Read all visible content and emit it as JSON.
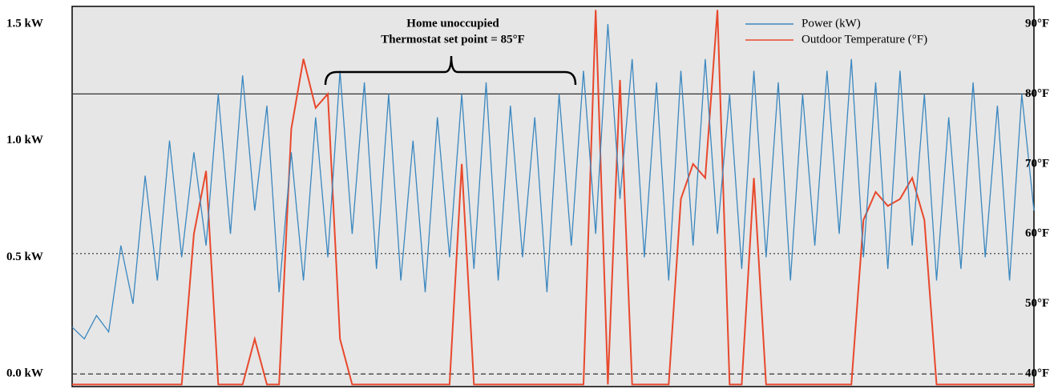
{
  "chart_data": {
    "type": "line",
    "annotation": [
      "Home unoccupied",
      "Thermostat set point = 85°F"
    ],
    "ylim": [
      -0.055,
      1.576
    ],
    "yticks": [
      {
        "value": 0,
        "label": "0.0 kW"
      },
      {
        "value": 0.5,
        "label": "0.5 kW"
      },
      {
        "value": 1.0,
        "label": "1.0 kW"
      },
      {
        "value": 1.5,
        "label": "1.5 kW"
      }
    ],
    "y2lim": [
      38.2,
      92.5
    ],
    "y2ticks": [
      {
        "value": 40,
        "label": "40°F"
      },
      {
        "value": 50,
        "label": "50°F"
      },
      {
        "value": 60,
        "label": "60°F"
      },
      {
        "value": 70,
        "label": "70°F"
      },
      {
        "value": 80,
        "label": "80°F"
      },
      {
        "value": 90,
        "label": "90°F"
      }
    ],
    "reference_lines": [
      {
        "value": 80,
        "axis": "y2",
        "style": "solid"
      },
      {
        "value": 57.2,
        "axis": "y2",
        "style": "dotted"
      },
      {
        "value": 40,
        "axis": "y2",
        "style": "dashed"
      }
    ],
    "legend": "top-right",
    "series": [
      {
        "name": "Power (kW)",
        "color": "#3a87bf",
        "values": [
          0.2,
          0.15,
          0.25,
          0.18,
          0.55,
          0.3,
          0.85,
          0.4,
          1.0,
          0.5,
          0.95,
          0.55,
          1.2,
          0.6,
          1.28,
          0.7,
          1.15,
          0.35,
          0.95,
          0.4,
          1.1,
          0.5,
          1.3,
          0.6,
          1.25,
          0.45,
          1.2,
          0.4,
          1.0,
          0.35,
          1.1,
          0.5,
          1.2,
          0.45,
          1.25,
          0.4,
          1.15,
          0.5,
          1.1,
          0.35,
          1.2,
          0.55,
          1.3,
          0.6,
          1.5,
          0.75,
          1.35,
          0.5,
          1.25,
          0.4,
          1.3,
          0.55,
          1.35,
          0.6,
          1.2,
          0.45,
          1.3,
          0.5,
          1.25,
          0.4,
          1.2,
          0.55,
          1.3,
          0.6,
          1.35,
          0.5,
          1.25,
          0.45,
          1.3,
          0.55,
          1.2,
          0.4,
          1.1,
          0.45,
          1.25,
          0.5,
          1.15,
          0.4,
          1.2,
          0.7
        ]
      },
      {
        "name": "Outdoor Temperature (°F)",
        "color": "#e8482c",
        "axis": "y2",
        "values": [
          38.5,
          38.5,
          38.5,
          38.5,
          38.5,
          38.5,
          38.5,
          38.5,
          38.5,
          38.5,
          60,
          69,
          38.5,
          38.5,
          38.5,
          45,
          38.5,
          38.5,
          75,
          85,
          78,
          80,
          45,
          38.5,
          38.5,
          38.5,
          38.5,
          38.5,
          38.5,
          38.5,
          38.5,
          38.5,
          70,
          38.5,
          38.5,
          38.5,
          38.5,
          38.5,
          38.5,
          38.5,
          38.5,
          38.5,
          38.5,
          92,
          38.5,
          82,
          38.5,
          38.5,
          38.5,
          38.5,
          65,
          70,
          68,
          92,
          38.5,
          38.5,
          68,
          38.5,
          38.5,
          38.5,
          38.5,
          38.5,
          38.5,
          38.5,
          38.5,
          62,
          66,
          64,
          65,
          68,
          62,
          38.5,
          38.5,
          38.5,
          38.5,
          38.5,
          38.5,
          38.5,
          38.5,
          38.5
        ]
      }
    ]
  }
}
